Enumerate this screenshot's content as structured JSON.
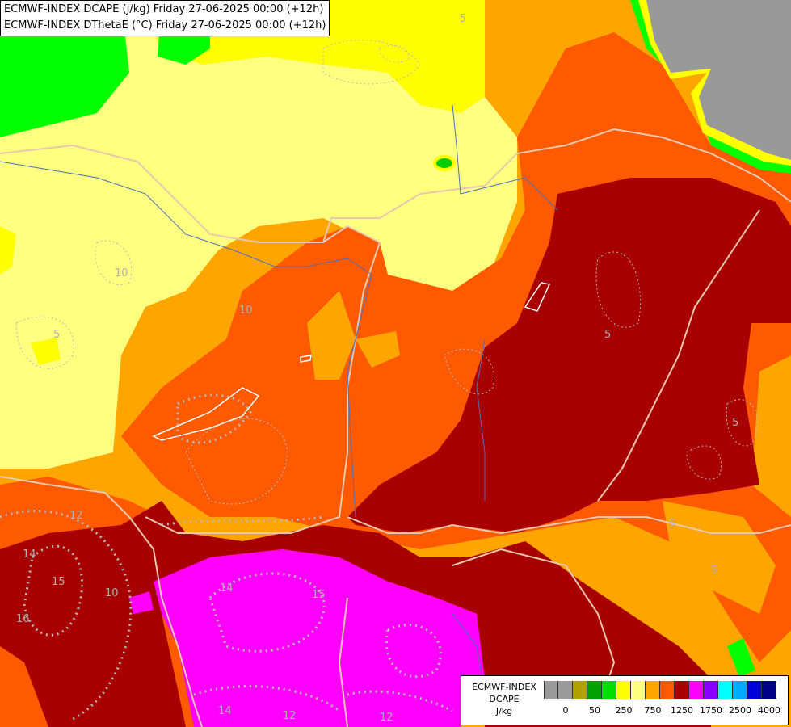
{
  "title_lines": [
    "ECMWF-INDEX DCAPE (J/kg) Friday 27-06-2025 00:00 (+12h)",
    "ECMWF-INDEX DThetaE (°C) Friday 27-06-2025 00:00 (+12h)"
  ],
  "legend": {
    "caption_lines": [
      "ECMWF-INDEX",
      "DCAPE",
      "J/kg"
    ],
    "colors": [
      "#9a9a9a",
      "#9a9a9a",
      "#b0a000",
      "#00a000",
      "#00dd00",
      "#ffff00",
      "#ffff80",
      "#ffa500",
      "#ff5a00",
      "#a80000",
      "#ff00ff",
      "#8800ff",
      "#00ffff",
      "#00aaff",
      "#0000dd",
      "#000088"
    ],
    "tick_labels": [
      "0",
      "50",
      "250",
      "750",
      "1250",
      "1750",
      "2500",
      "4000"
    ]
  },
  "contour_labels": [
    "5",
    "10",
    "5",
    "10",
    "5",
    "5",
    "5",
    "5",
    "12",
    "10",
    "15",
    "14",
    "15",
    "16",
    "14",
    "12",
    "12",
    "14"
  ]
}
